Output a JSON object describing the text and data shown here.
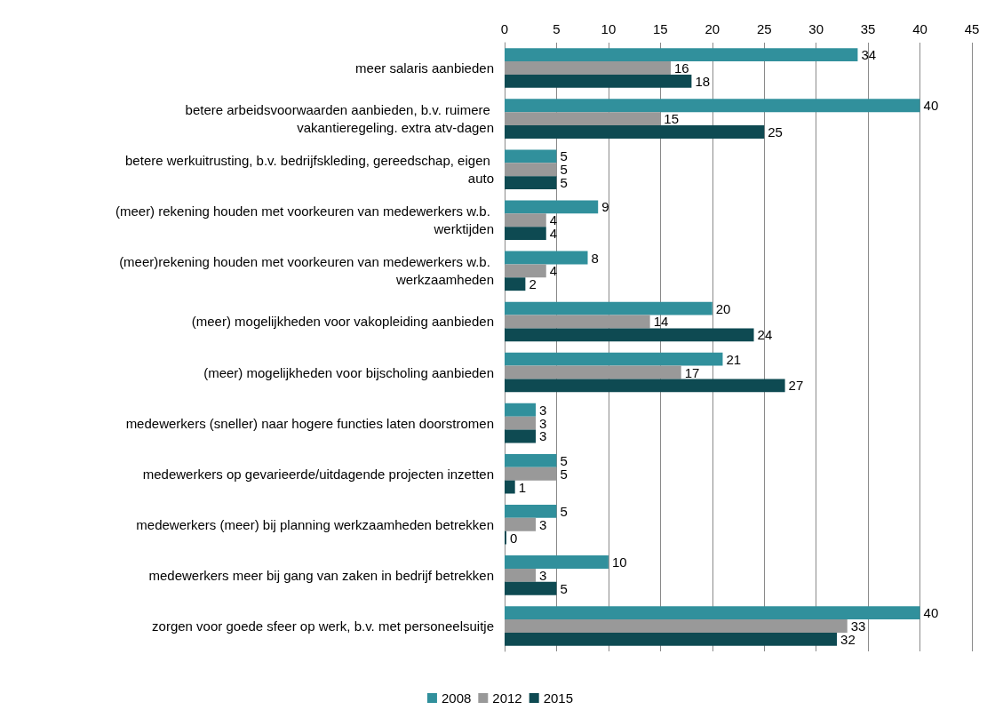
{
  "chart_data": {
    "type": "bar",
    "orientation": "horizontal",
    "categories": [
      "meer salaris aanbieden",
      "betere arbeidsvoorwaarden aanbieden, b.v. ruimere vakantieregeling. extra atv-dagen",
      "betere werkuitrusting, b.v. bedrijfskleding, gereedschap, eigen auto",
      "(meer) rekening houden met voorkeuren van medewerkers w.b. werktijden",
      "(meer)rekening houden met voorkeuren van medewerkers w.b. werkzaamheden",
      "(meer) mogelijkheden voor vakopleiding aanbieden",
      "(meer) mogelijkheden voor bijscholing aanbieden",
      "medewerkers (sneller) naar hogere functies laten doorstromen",
      "medewerkers op gevarieerde/uitdagende projecten inzetten",
      "medewerkers (meer) bij planning werkzaamheden betrekken",
      "medewerkers meer bij gang van zaken in bedrijf betrekken",
      "zorgen voor goede sfeer op werk, b.v. met personeelsuitje"
    ],
    "series": [
      {
        "name": "2008",
        "color": "#31909c",
        "values": [
          34,
          40,
          5,
          9,
          8,
          20,
          21,
          3,
          5,
          5,
          10,
          40
        ]
      },
      {
        "name": "2012",
        "color": "#999999",
        "values": [
          16,
          15,
          5,
          4,
          4,
          14,
          17,
          3,
          5,
          3,
          3,
          33
        ]
      },
      {
        "name": "2015",
        "color": "#0e4a52",
        "values": [
          18,
          25,
          5,
          4,
          2,
          24,
          27,
          3,
          1,
          0,
          5,
          32
        ]
      }
    ],
    "xlim": [
      0,
      45
    ],
    "xticks": [
      0,
      5,
      10,
      15,
      20,
      25,
      30,
      35,
      40,
      45
    ],
    "grid": "x",
    "legend": "bottom",
    "data_labels": true
  }
}
